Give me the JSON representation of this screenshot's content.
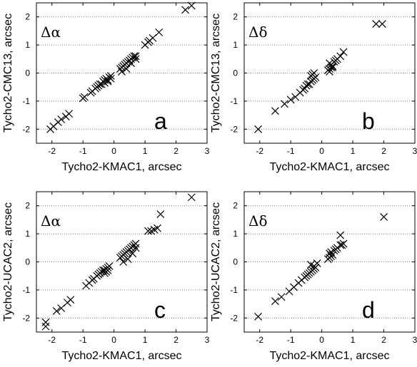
{
  "chart_data": [
    {
      "type": "scatter",
      "panel": "a",
      "inset_label": "Δα",
      "xlabel": "Tycho2-KMAC1, arcsec",
      "ylabel": "Tycho2-CMC13, arcsec",
      "xlim": [
        -2.5,
        3
      ],
      "ylim": [
        -2.5,
        2.5
      ],
      "xticks": [
        -2,
        -1,
        0,
        1,
        2,
        3
      ],
      "yticks": [
        -2,
        -1,
        0,
        1,
        2
      ],
      "grid": "horizontal dotted",
      "marker": "x",
      "x": [
        -2.05,
        -1.95,
        -1.8,
        -1.7,
        -1.55,
        -1.45,
        -1.0,
        -0.95,
        -0.75,
        -0.7,
        -0.6,
        -0.55,
        -0.5,
        -0.45,
        -0.4,
        -0.35,
        -0.3,
        -0.25,
        -0.2,
        -0.15,
        -0.1,
        -0.3,
        -0.2,
        -0.1,
        0.2,
        0.25,
        0.3,
        0.35,
        0.4,
        0.45,
        0.5,
        0.55,
        0.6,
        0.65,
        0.7,
        0.25,
        0.4,
        0.55,
        0.7,
        1.0,
        1.1,
        1.15,
        1.25,
        1.45,
        2.3,
        2.5
      ],
      "y": [
        -2.0,
        -1.9,
        -1.75,
        -1.65,
        -1.55,
        -1.45,
        -0.9,
        -0.85,
        -0.7,
        -0.65,
        -0.55,
        -0.5,
        -0.45,
        -0.4,
        -0.4,
        -0.3,
        -0.25,
        -0.2,
        -0.25,
        -0.15,
        -0.1,
        -0.35,
        -0.3,
        -0.2,
        0.15,
        0.2,
        0.25,
        0.3,
        0.35,
        0.4,
        0.45,
        0.5,
        0.55,
        0.6,
        0.6,
        0.05,
        0.15,
        0.35,
        0.5,
        1.0,
        1.1,
        1.15,
        1.25,
        1.45,
        2.25,
        2.4
      ]
    },
    {
      "type": "scatter",
      "panel": "b",
      "inset_label": "Δδ",
      "xlabel": "Tycho2-KMAC1, arcsec",
      "ylabel": "Tycho2-CMC13, arcsec",
      "xlim": [
        -2.5,
        3
      ],
      "ylim": [
        -2.5,
        2.5
      ],
      "xticks": [
        -2,
        -1,
        0,
        1,
        2,
        3
      ],
      "yticks": [
        -2,
        -1,
        0,
        1,
        2
      ],
      "grid": "horizontal dotted",
      "marker": "x",
      "x": [
        -2.05,
        -1.5,
        -1.2,
        -1.0,
        -0.85,
        -0.7,
        -0.6,
        -0.55,
        -0.5,
        -0.45,
        -0.4,
        -0.35,
        -0.3,
        -0.25,
        -0.2,
        -0.35,
        -0.3,
        -0.25,
        0.2,
        0.25,
        0.3,
        0.35,
        0.3,
        0.25,
        0.4,
        0.45,
        0.5,
        0.6,
        0.7,
        0.25,
        0.35,
        1.75,
        1.95
      ],
      "y": [
        -2.0,
        -1.35,
        -1.1,
        -0.95,
        -0.85,
        -0.7,
        -0.6,
        -0.55,
        -0.45,
        -0.4,
        -0.4,
        -0.3,
        -0.25,
        -0.2,
        -0.15,
        -0.1,
        -0.05,
        0.0,
        0.1,
        0.15,
        0.2,
        0.25,
        0.3,
        0.35,
        0.4,
        0.45,
        0.5,
        0.6,
        0.75,
        0.05,
        0.2,
        1.75,
        1.75
      ]
    },
    {
      "type": "scatter",
      "panel": "c",
      "inset_label": "Δα",
      "xlabel": "Tycho2-KMAC1, arcsec",
      "ylabel": "Tycho2-UCAC2, arcsec",
      "xlim": [
        -2.5,
        3
      ],
      "ylim": [
        -2.5,
        2.5
      ],
      "xticks": [
        -2,
        -1,
        0,
        1,
        2,
        3
      ],
      "yticks": [
        -2,
        -1,
        0,
        1,
        2
      ],
      "grid": "horizontal dotted",
      "marker": "x",
      "x": [
        -2.2,
        -2.2,
        -1.85,
        -1.7,
        -1.5,
        -1.4,
        -0.9,
        -0.8,
        -0.7,
        -0.65,
        -0.55,
        -0.5,
        -0.45,
        -0.4,
        -0.35,
        -0.3,
        -0.25,
        -0.2,
        -0.15,
        -0.3,
        -0.25,
        -0.2,
        0.2,
        0.25,
        0.3,
        0.35,
        0.4,
        0.45,
        0.5,
        0.55,
        0.6,
        0.65,
        0.7,
        0.3,
        0.45,
        0.6,
        0.7,
        1.1,
        1.2,
        1.3,
        1.4,
        1.5,
        2.5
      ],
      "y": [
        -2.15,
        -2.3,
        -1.75,
        -1.65,
        -1.45,
        -1.35,
        -0.85,
        -0.75,
        -0.65,
        -0.6,
        -0.5,
        -0.45,
        -0.4,
        -0.35,
        -0.3,
        -0.3,
        -0.25,
        -0.2,
        -0.15,
        -0.4,
        -0.35,
        -0.3,
        0.15,
        0.2,
        0.25,
        0.3,
        0.35,
        0.4,
        0.45,
        0.5,
        0.55,
        0.6,
        0.65,
        0.0,
        0.1,
        0.3,
        0.5,
        1.1,
        1.1,
        1.15,
        1.2,
        1.7,
        2.3
      ]
    },
    {
      "type": "scatter",
      "panel": "d",
      "inset_label": "Δδ",
      "xlabel": "Tycho2-KMAC1, arcsec",
      "ylabel": "Tycho2-UCAC2, arcsec",
      "xlim": [
        -2.5,
        3
      ],
      "ylim": [
        -2.5,
        2.5
      ],
      "xticks": [
        -2,
        -1,
        0,
        1,
        2,
        3
      ],
      "yticks": [
        -2,
        -1,
        0,
        1,
        2
      ],
      "grid": "horizontal dotted",
      "marker": "x",
      "x": [
        -2.05,
        -1.5,
        -1.3,
        -1.05,
        -0.9,
        -0.75,
        -0.65,
        -0.55,
        -0.5,
        -0.45,
        -0.4,
        -0.35,
        -0.3,
        -0.25,
        -0.2,
        -0.35,
        -0.25,
        -0.15,
        0.2,
        0.25,
        0.3,
        0.35,
        0.25,
        0.3,
        0.4,
        0.45,
        0.5,
        0.6,
        0.7,
        0.6,
        0.65,
        2.0
      ],
      "y": [
        -1.95,
        -1.4,
        -1.25,
        -1.05,
        -0.9,
        -0.75,
        -0.65,
        -0.55,
        -0.5,
        -0.45,
        -0.4,
        -0.35,
        -0.3,
        -0.25,
        -0.2,
        -0.1,
        -0.15,
        -0.05,
        0.1,
        0.15,
        0.2,
        0.25,
        0.3,
        0.35,
        0.4,
        0.45,
        0.5,
        0.6,
        0.65,
        0.95,
        0.6,
        1.6
      ]
    }
  ]
}
